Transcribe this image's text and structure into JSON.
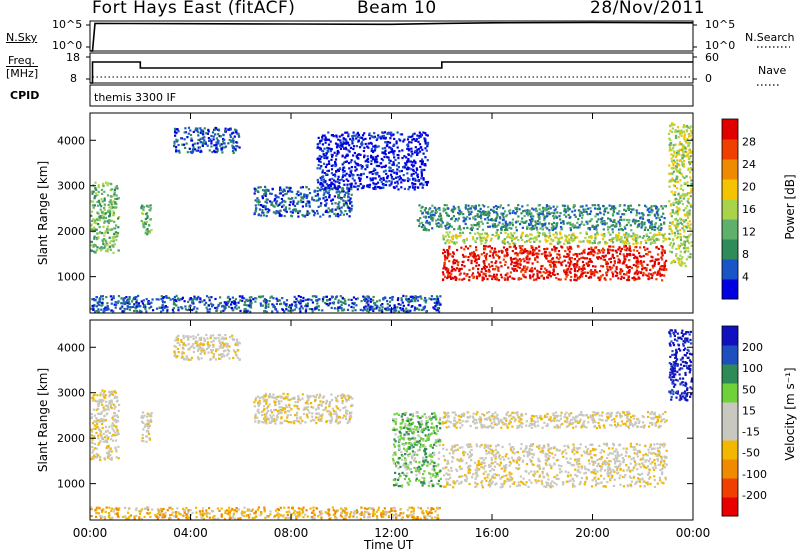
{
  "header": {
    "station": "Fort Hays East (fitACF)",
    "beam": "Beam 10",
    "date": "28/Nov/2011"
  },
  "strip_labels": {
    "nsky": "N.Sky",
    "nsky_ticks": [
      "10^5",
      "10^0"
    ],
    "nsearch": "N.Search",
    "freq": "Freq.",
    "freq_unit": "[MHz]",
    "freq_ticks": [
      "18",
      "8"
    ],
    "nave": "Nave",
    "nave_ticks": [
      "60",
      "0"
    ],
    "cpid": "CPID",
    "cpid_value": "themis 3300 IF"
  },
  "colors": {
    "power_scale": [
      "#0000e0",
      "#1a55c8",
      "#2f8c5a",
      "#5fb06a",
      "#a8d34a",
      "#f5c400",
      "#f08a00",
      "#f04000",
      "#e00000"
    ],
    "velocity_scale": [
      "#e80000",
      "#f04000",
      "#f08a00",
      "#f2b800",
      "#c8c8c0",
      "#c8c8c0",
      "#6fd23a",
      "#2e8b57",
      "#1f4fbf",
      "#1010c0"
    ],
    "ground_scatter": "#c8c8c0"
  },
  "chart_data": [
    {
      "type": "heatmap",
      "panel": "power",
      "ylabel": "Slant Range [km]",
      "yticks": [
        "1000",
        "2000",
        "3000",
        "4000"
      ],
      "ylim": [
        200,
        4600
      ],
      "xlim": [
        0,
        24
      ],
      "colorbar_label": "Power [dB]",
      "colorbar_ticks": [
        "4",
        "8",
        "12",
        "16",
        "20",
        "24",
        "28"
      ],
      "scatter_regions": [
        {
          "t": [
            0.0,
            1.2
          ],
          "r": [
            1500,
            3100
          ],
          "level": 3
        },
        {
          "t": [
            2.0,
            2.5
          ],
          "r": [
            1900,
            2600
          ],
          "level": 3
        },
        {
          "t": [
            3.3,
            6.0
          ],
          "r": [
            3700,
            4300
          ],
          "level": 1
        },
        {
          "t": [
            6.5,
            10.5
          ],
          "r": [
            2300,
            3000
          ],
          "level": 1
        },
        {
          "t": [
            9.0,
            13.5
          ],
          "r": [
            2900,
            4200
          ],
          "level": 0
        },
        {
          "t": [
            13.0,
            23.0
          ],
          "r": [
            2000,
            2600
          ],
          "level": 2
        },
        {
          "t": [
            14.0,
            23.0
          ],
          "r": [
            1700,
            2000
          ],
          "level": 4
        },
        {
          "t": [
            14.0,
            23.0
          ],
          "r": [
            900,
            1700
          ],
          "level": 8
        },
        {
          "t": [
            23.0,
            24.0
          ],
          "r": [
            1200,
            4400
          ],
          "level": 4
        },
        {
          "t": [
            0.0,
            14.0
          ],
          "r": [
            200,
            600
          ],
          "level": 1
        }
      ]
    },
    {
      "type": "heatmap",
      "panel": "velocity",
      "ylabel": "Slant Range [km]",
      "yticks": [
        "1000",
        "2000",
        "3000",
        "4000"
      ],
      "ylim": [
        200,
        4600
      ],
      "xlim": [
        0,
        24
      ],
      "xticks": [
        "00:00",
        "04:00",
        "08:00",
        "12:00",
        "16:00",
        "20:00",
        "00:00"
      ],
      "xlabel": "Time UT",
      "colorbar_label": "Velocity [m s⁻¹]",
      "colorbar_ticks": [
        "200",
        "100",
        "50",
        "15",
        "-15",
        "-50",
        "-100",
        "-200"
      ],
      "scatter_regions": [
        {
          "t": [
            0.0,
            1.2
          ],
          "r": [
            1500,
            3100
          ],
          "level": 4
        },
        {
          "t": [
            2.0,
            2.5
          ],
          "r": [
            1900,
            2600
          ],
          "level": 4
        },
        {
          "t": [
            3.3,
            6.0
          ],
          "r": [
            3700,
            4300
          ],
          "level": 4
        },
        {
          "t": [
            6.5,
            10.5
          ],
          "r": [
            2300,
            3000
          ],
          "level": 4
        },
        {
          "t": [
            12.0,
            14.0
          ],
          "r": [
            900,
            2600
          ],
          "level": 6
        },
        {
          "t": [
            14.0,
            23.0
          ],
          "r": [
            900,
            1900
          ],
          "level": 4
        },
        {
          "t": [
            14.0,
            23.0
          ],
          "r": [
            2200,
            2600
          ],
          "level": 4
        },
        {
          "t": [
            23.0,
            24.0
          ],
          "r": [
            2800,
            4400
          ],
          "level": 9
        },
        {
          "t": [
            0.0,
            14.0
          ],
          "r": [
            200,
            500
          ],
          "level": 3
        }
      ]
    },
    {
      "type": "line",
      "panel": "nsky",
      "ylim": [
        0,
        5
      ],
      "xlim": [
        0,
        24
      ],
      "series": [
        {
          "x": [
            0,
            0.1,
            0.2,
            4,
            8,
            12,
            14,
            16,
            20,
            24
          ],
          "values": [
            0,
            0,
            4.6,
            4.55,
            4.5,
            4.45,
            4.6,
            4.7,
            4.75,
            4.7
          ]
        }
      ]
    },
    {
      "type": "line",
      "panel": "freq",
      "ylim": [
        8,
        18
      ],
      "xlim": [
        0,
        24
      ],
      "series": [
        {
          "x": [
            0,
            0.1,
            0.1,
            2.0,
            2.0,
            14.0,
            14.0,
            24
          ],
          "values": [
            8,
            8,
            15,
            15,
            13,
            13,
            15,
            15
          ]
        },
        {
          "x": [
            0.1,
            24
          ],
          "values": [
            10,
            10
          ]
        }
      ]
    }
  ]
}
